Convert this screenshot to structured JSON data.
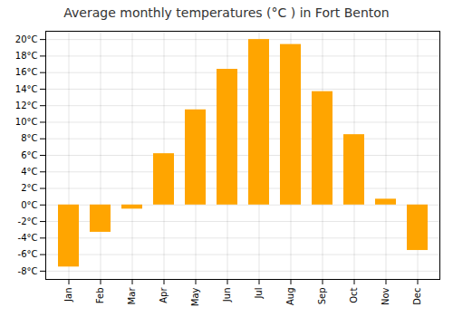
{
  "chart_data": {
    "type": "bar",
    "title": "Average monthly temperatures (°C ) in Fort Benton",
    "categories": [
      "Jan",
      "Feb",
      "Mar",
      "Apr",
      "May",
      "Jun",
      "Jul",
      "Aug",
      "Sep",
      "Oct",
      "Nov",
      "Dec"
    ],
    "values": [
      -7.5,
      -3.3,
      -0.5,
      6.2,
      11.5,
      16.4,
      20.0,
      19.4,
      13.7,
      8.5,
      0.7,
      -5.5
    ],
    "color": "#FFA500",
    "ylim": [
      -9,
      21
    ],
    "yticks": [
      {
        "value": -8,
        "label": "-8°C"
      },
      {
        "value": -6,
        "label": "-6°C"
      },
      {
        "value": -4,
        "label": "-4°C"
      },
      {
        "value": -2,
        "label": "-2°C"
      },
      {
        "value": 0,
        "label": "0°C"
      },
      {
        "value": 2,
        "label": "2°C"
      },
      {
        "value": 4,
        "label": "4°C"
      },
      {
        "value": 6,
        "label": "6°C"
      },
      {
        "value": 8,
        "label": "8°C"
      },
      {
        "value": 10,
        "label": "10°C"
      },
      {
        "value": 12,
        "label": "12°C"
      },
      {
        "value": 14,
        "label": "14°C"
      },
      {
        "value": 16,
        "label": "16°C"
      },
      {
        "value": 18,
        "label": "18°C"
      },
      {
        "value": 20,
        "label": "20°C"
      }
    ],
    "grid": true
  }
}
